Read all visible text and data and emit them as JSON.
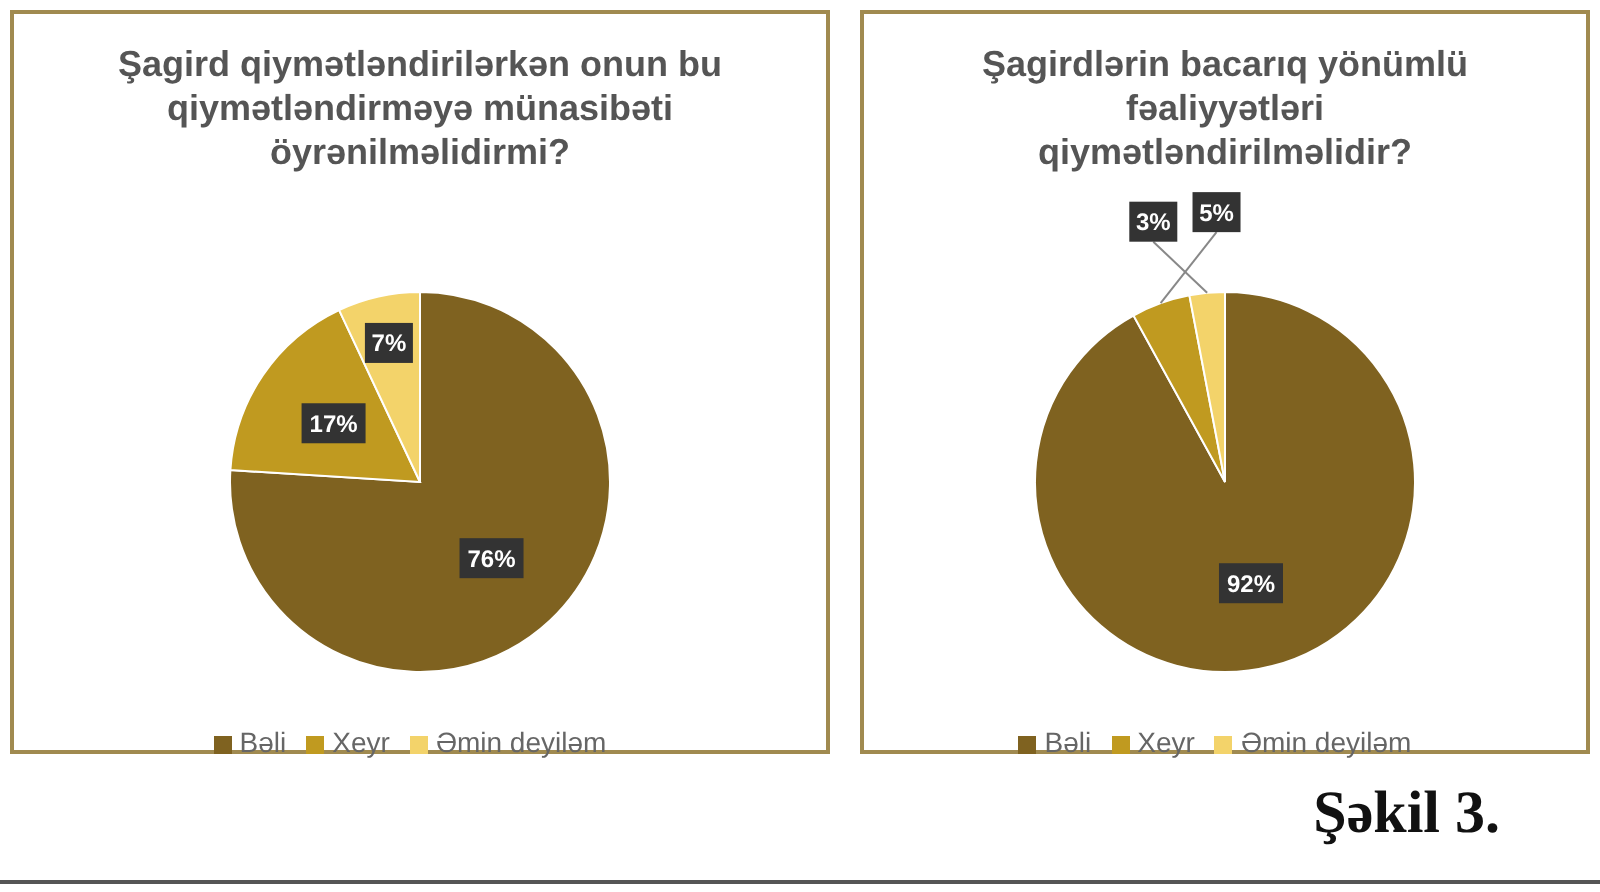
{
  "chart_data": [
    {
      "type": "pie",
      "title": "Şagird qiymətləndirilərkən onun bu qiymətləndirməyə münasibəti öyrənilməlidirmi?",
      "categories": [
        "Bəli",
        "Xeyr",
        "Əmin deyiləm"
      ],
      "values": [
        76,
        17,
        7
      ],
      "colors": [
        "#7f6220",
        "#c09a20",
        "#f3d36a"
      ],
      "value_labels": [
        "76%",
        "17%",
        "7%"
      ],
      "legend": "bottom"
    },
    {
      "type": "pie",
      "title": "Şagirdlərin bacarıq yönümlü fəaliyyətləri qiymətləndirilməlidir?",
      "categories": [
        "Bəli",
        "Xeyr",
        "Əmin deyiləm"
      ],
      "values": [
        92,
        5,
        3
      ],
      "colors": [
        "#7f6220",
        "#c09a20",
        "#f3d36a"
      ],
      "value_labels": [
        "92%",
        "5%",
        "3%"
      ],
      "legend": "bottom",
      "annotations": [
        "Şəkil 3."
      ]
    }
  ]
}
